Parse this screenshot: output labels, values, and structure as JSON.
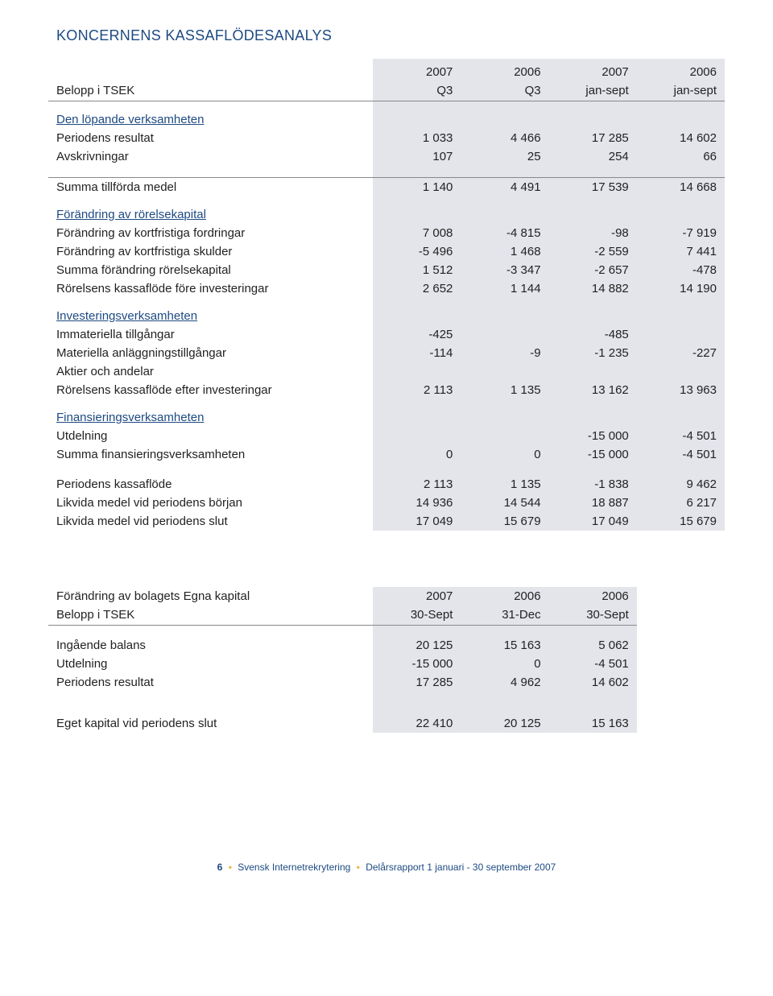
{
  "title": "KONCERNENS KASSAFLÖDESANALYS",
  "colors": {
    "accent": "#1d4a82",
    "shade": "#e3e5eb",
    "rule": "#888888",
    "footer_dot": "#e7b94a",
    "text": "#222222",
    "background": "#ffffff"
  },
  "table1": {
    "header_row1": {
      "c1": "2007",
      "c2": "2006",
      "c3": "2007",
      "c4": "2006"
    },
    "header_row2": {
      "label": "Belopp i TSEK",
      "c1": "Q3",
      "c2": "Q3",
      "c3": "jan-sept",
      "c4": "jan-sept"
    },
    "sections": {
      "s1_title": "Den löpande verksamheten",
      "r1": {
        "label": "Periodens resultat",
        "c1": "1 033",
        "c2": "4 466",
        "c3": "17 285",
        "c4": "14 602"
      },
      "r2": {
        "label": "Avskrivningar",
        "c1": "107",
        "c2": "25",
        "c3": "254",
        "c4": "66"
      },
      "r3": {
        "label": "Summa tillförda medel",
        "c1": "1 140",
        "c2": "4 491",
        "c3": "17 539",
        "c4": "14 668"
      },
      "s2_title": "Förändring av rörelsekapital",
      "r4": {
        "label": "Förändring av kortfristiga fordringar",
        "c1": "7 008",
        "c2": "-4 815",
        "c3": "-98",
        "c4": "-7 919"
      },
      "r5": {
        "label": "Förändring av kortfristiga skulder",
        "c1": "-5 496",
        "c2": "1 468",
        "c3": "-2 559",
        "c4": "7 441"
      },
      "r6": {
        "label": "Summa förändring rörelsekapital",
        "c1": "1 512",
        "c2": "-3 347",
        "c3": "-2 657",
        "c4": "-478"
      },
      "r7": {
        "label": "Rörelsens kassaflöde före investeringar",
        "c1": "2 652",
        "c2": "1 144",
        "c3": "14 882",
        "c4": "14 190"
      },
      "s3_title": "Investeringsverksamheten",
      "r8": {
        "label": "Immateriella tillgångar",
        "c1": "-425",
        "c2": "",
        "c3": "-485",
        "c4": ""
      },
      "r9": {
        "label": "Materiella anläggningstillgångar",
        "c1": "-114",
        "c2": "-9",
        "c3": "-1 235",
        "c4": "-227"
      },
      "r10": {
        "label": "Aktier och andelar",
        "c1": "",
        "c2": "",
        "c3": "",
        "c4": ""
      },
      "r11": {
        "label": "Rörelsens kassaflöde efter investeringar",
        "c1": "2 113",
        "c2": "1 135",
        "c3": "13 162",
        "c4": "13 963"
      },
      "s4_title": "Finansieringsverksamheten",
      "r12": {
        "label": "Utdelning",
        "c1": "",
        "c2": "",
        "c3": "-15 000",
        "c4": "-4 501"
      },
      "r13": {
        "label": "Summa finansieringsverksamheten",
        "c1": "0",
        "c2": "0",
        "c3": "-15 000",
        "c4": "-4 501"
      },
      "r14": {
        "label": "Periodens kassaflöde",
        "c1": "2 113",
        "c2": "1 135",
        "c3": "-1 838",
        "c4": "9 462"
      },
      "r15": {
        "label": "Likvida medel vid periodens början",
        "c1": "14 936",
        "c2": "14 544",
        "c3": "18 887",
        "c4": "6 217"
      },
      "r16": {
        "label": "Likvida medel vid periodens slut",
        "c1": "17 049",
        "c2": "15 679",
        "c3": "17 049",
        "c4": "15 679"
      }
    }
  },
  "table2": {
    "header_row1": {
      "label": "Förändring av bolagets Egna kapital",
      "c1": "2007",
      "c2": "2006",
      "c3": "2006"
    },
    "header_row2": {
      "label": "Belopp i TSEK",
      "c1": "30-Sept",
      "c2": "31-Dec",
      "c3": "30-Sept"
    },
    "r1": {
      "label": "Ingående balans",
      "c1": "20 125",
      "c2": "15 163",
      "c3": "5 062"
    },
    "r2": {
      "label": "Utdelning",
      "c1": "-15 000",
      "c2": "0",
      "c3": "-4 501"
    },
    "r3": {
      "label": "Periodens resultat",
      "c1": "17 285",
      "c2": "4 962",
      "c3": "14 602"
    },
    "r4": {
      "label": "Eget kapital vid periodens slut",
      "c1": "22 410",
      "c2": "20 125",
      "c3": "15 163"
    }
  },
  "footer": {
    "pagenum": "6",
    "company": "Svensk Internetrekrytering",
    "report": "Delårsrapport 1 januari - 30 september 2007"
  }
}
